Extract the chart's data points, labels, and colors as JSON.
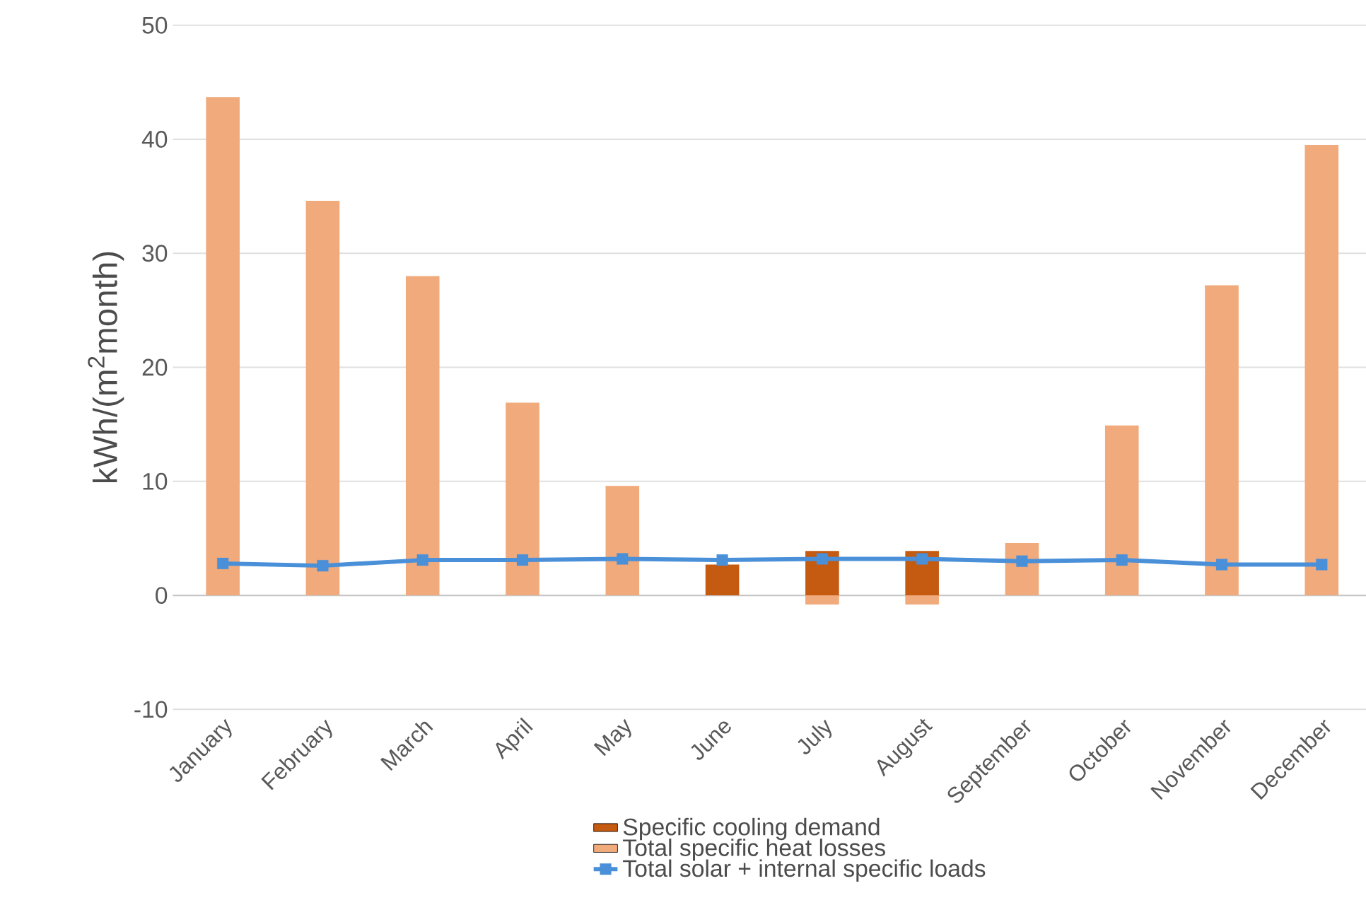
{
  "chart_data": {
    "type": "bar",
    "ylabel": "kWh/(m$^{2}$month)",
    "categories": [
      "January",
      "February",
      "March",
      "April",
      "May",
      "June",
      "July",
      "August",
      "September",
      "October",
      "November",
      "December"
    ],
    "series": [
      {
        "name": "Specific cooling demand",
        "color": "#c55a11",
        "values": [
          null,
          null,
          null,
          null,
          null,
          2.7,
          3.9,
          3.9,
          null,
          null,
          null,
          null
        ]
      },
      {
        "name": "Total specific heat losses",
        "color": "#f0aa7c",
        "values": [
          43.7,
          34.6,
          28.0,
          16.9,
          9.6,
          0,
          -0.8,
          -0.8,
          4.6,
          14.9,
          27.2,
          39.5
        ]
      },
      {
        "name": "Total solar + internal specific loads",
        "type": "line",
        "color": "#4a90d9",
        "marker": "square",
        "values": [
          2.8,
          2.6,
          3.1,
          3.1,
          3.2,
          3.1,
          3.2,
          3.2,
          3.0,
          3.1,
          2.7,
          2.7
        ]
      }
    ],
    "ylim": [
      -10,
      50
    ],
    "yticks": [
      -10,
      0,
      10,
      20,
      30,
      40,
      50
    ],
    "grid": "y",
    "legend": "bottom"
  }
}
